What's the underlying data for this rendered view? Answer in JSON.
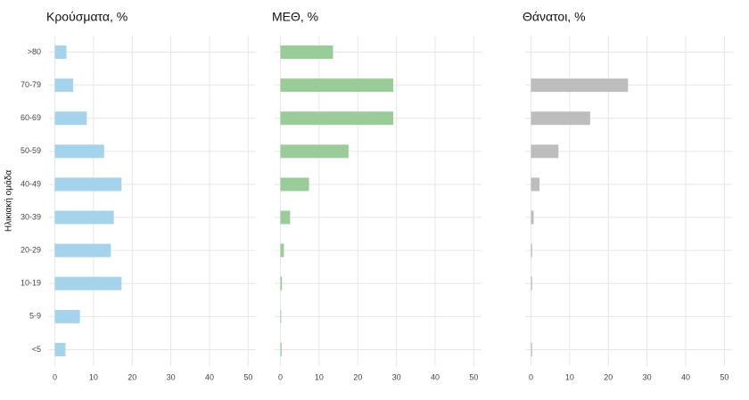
{
  "chart_data": [
    {
      "type": "bar",
      "orientation": "horizontal",
      "title": "Κρούσματα, %",
      "ylabel": "Ηλικιακή ομάδα",
      "categories": [
        ">80",
        "70-79",
        "60-69",
        "50-59",
        "40-49",
        "30-39",
        "20-29",
        "10-19",
        "5-9",
        "<5"
      ],
      "values": [
        3,
        4.75,
        8.25,
        12.75,
        17.25,
        15.25,
        14.5,
        17.25,
        6.5,
        2.75
      ],
      "color": "#a6d3ec",
      "xlim": [
        -1.5,
        52
      ],
      "xticks": [
        0,
        10,
        20,
        30,
        40,
        50
      ],
      "grid": true
    },
    {
      "type": "bar",
      "orientation": "horizontal",
      "title": "ΜΕΘ, %",
      "values": [
        13.6,
        29.2,
        29.2,
        17.6,
        7.4,
        2.5,
        0.9,
        0.4,
        0.2,
        0.3
      ],
      "color": "#99cc99",
      "xlim": [
        -1.5,
        52
      ],
      "xticks": [
        0,
        10,
        20,
        30,
        40,
        50
      ],
      "grid": true
    },
    {
      "type": "bar",
      "orientation": "horizontal",
      "title": "Θάνατοι, %",
      "values": [
        0,
        25.1,
        15.3,
        7.1,
        2.2,
        0.7,
        0.3,
        0.3,
        0,
        0.3
      ],
      "color": "#bdbdbd",
      "xlim": [
        -1.5,
        52
      ],
      "xticks": [
        0,
        10,
        20,
        30,
        40,
        50
      ],
      "grid": true
    }
  ]
}
